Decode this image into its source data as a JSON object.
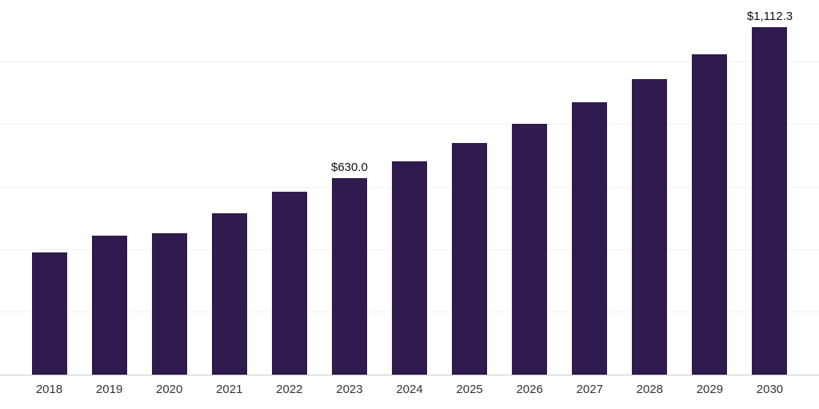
{
  "chart_data": {
    "type": "bar",
    "title": "",
    "xlabel": "",
    "ylabel": "",
    "categories": [
      "2018",
      "2019",
      "2020",
      "2021",
      "2022",
      "2023",
      "2024",
      "2025",
      "2026",
      "2027",
      "2028",
      "2029",
      "2030"
    ],
    "values": [
      391.0,
      444.9,
      452.2,
      516.2,
      585.2,
      630.0,
      683.3,
      741.1,
      803.8,
      871.8,
      945.6,
      1025.6,
      1112.3
    ],
    "bar_labels": {
      "2023": "$630.0",
      "2030": "$1,112.3"
    },
    "ylim": [
      0,
      1200
    ],
    "gridline_step": 200,
    "grid": "on",
    "legend": "none",
    "bar_color": "#2f1b4d",
    "label_color": "#111111",
    "tick_color": "#333333",
    "gridline_color": "#f2f2f2",
    "axis_line_color": "#cccccc"
  }
}
